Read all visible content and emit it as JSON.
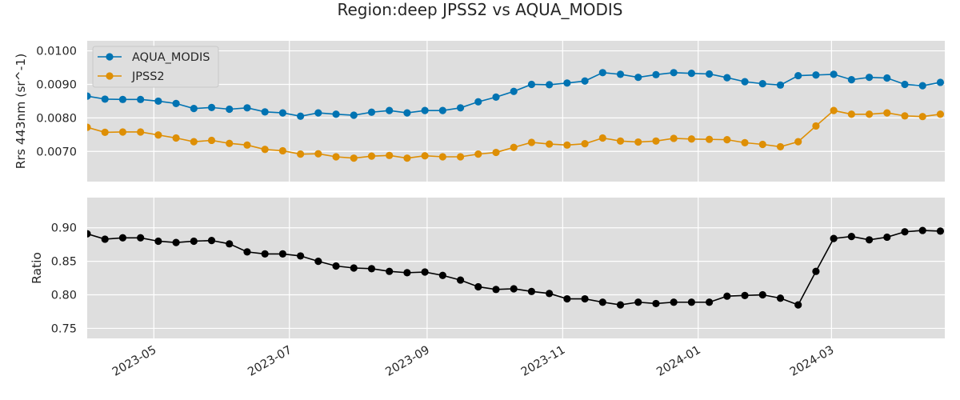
{
  "chart_data": [
    {
      "type": "line",
      "title": "Region:deep JPSS2 vs AQUA_MODIS",
      "ylabel": "Rrs 443nm (sr^-1)",
      "ylim": [
        0.0061,
        0.0103
      ],
      "yticks": [
        "0.0070",
        "0.0080",
        "0.0090",
        "0.0100"
      ],
      "legend": "upper-left",
      "grid": true,
      "x": [
        "2023-04-01",
        "2023-04-09",
        "2023-04-17",
        "2023-04-25",
        "2023-05-03",
        "2023-05-11",
        "2023-05-19",
        "2023-05-27",
        "2023-06-04",
        "2023-06-12",
        "2023-06-20",
        "2023-06-28",
        "2023-07-06",
        "2023-07-14",
        "2023-07-22",
        "2023-07-30",
        "2023-08-07",
        "2023-08-15",
        "2023-08-23",
        "2023-08-31",
        "2023-09-08",
        "2023-09-16",
        "2023-09-24",
        "2023-10-02",
        "2023-10-10",
        "2023-10-18",
        "2023-10-26",
        "2023-11-03",
        "2023-11-11",
        "2023-11-19",
        "2023-11-27",
        "2023-12-05",
        "2023-12-13",
        "2023-12-21",
        "2023-12-29",
        "2024-01-06",
        "2024-01-14",
        "2024-01-22",
        "2024-01-30",
        "2024-02-07",
        "2024-02-15",
        "2024-02-23",
        "2024-03-02",
        "2024-03-10",
        "2024-03-18",
        "2024-03-26",
        "2024-04-03",
        "2024-04-11",
        "2024-04-19"
      ],
      "series": [
        {
          "name": "AQUA_MODIS",
          "color": "#0173b2",
          "values": [
            0.00865,
            0.00856,
            0.00855,
            0.00855,
            0.0085,
            0.00843,
            0.00828,
            0.00831,
            0.00826,
            0.0083,
            0.00818,
            0.00815,
            0.00805,
            0.00815,
            0.00811,
            0.00808,
            0.00817,
            0.00822,
            0.00815,
            0.00822,
            0.00822,
            0.0083,
            0.00848,
            0.00862,
            0.00879,
            0.009,
            0.00899,
            0.00904,
            0.0091,
            0.00935,
            0.0093,
            0.00921,
            0.00929,
            0.00935,
            0.00933,
            0.00931,
            0.0092,
            0.00908,
            0.00902,
            0.00898,
            0.00926,
            0.00928,
            0.0093,
            0.00914,
            0.00921,
            0.00919,
            0.009,
            0.00896,
            0.00906
          ]
        },
        {
          "name": "JPSS2",
          "color": "#de8f05",
          "values": [
            0.00772,
            0.00757,
            0.00758,
            0.00758,
            0.00749,
            0.0074,
            0.00729,
            0.00733,
            0.00724,
            0.00719,
            0.00706,
            0.00702,
            0.00692,
            0.00693,
            0.00684,
            0.0068,
            0.00686,
            0.00688,
            0.0068,
            0.00687,
            0.00684,
            0.00684,
            0.00692,
            0.00697,
            0.00712,
            0.00727,
            0.00722,
            0.00719,
            0.00723,
            0.0074,
            0.00731,
            0.00728,
            0.00731,
            0.00739,
            0.00737,
            0.00736,
            0.00735,
            0.00726,
            0.00721,
            0.00714,
            0.00729,
            0.00776,
            0.00822,
            0.00811,
            0.00811,
            0.00815,
            0.00806,
            0.00804,
            0.00811
          ]
        }
      ]
    },
    {
      "type": "line",
      "ylabel": "Ratio",
      "ylim": [
        0.735,
        0.945
      ],
      "yticks": [
        "0.75",
        "0.80",
        "0.85",
        "0.90"
      ],
      "xticks": [
        "2023-05",
        "2023-07",
        "2023-09",
        "2023-11",
        "2024-01",
        "2024-03"
      ],
      "xlim": [
        "2023-04-01",
        "2024-04-21"
      ],
      "grid": true,
      "series": [
        {
          "color": "#000000",
          "values": [
            0.891,
            0.883,
            0.885,
            0.885,
            0.88,
            0.878,
            0.88,
            0.881,
            0.876,
            0.864,
            0.861,
            0.861,
            0.858,
            0.85,
            0.843,
            0.84,
            0.839,
            0.835,
            0.833,
            0.834,
            0.829,
            0.822,
            0.812,
            0.808,
            0.809,
            0.805,
            0.802,
            0.794,
            0.794,
            0.789,
            0.785,
            0.789,
            0.787,
            0.789,
            0.789,
            0.789,
            0.798,
            0.799,
            0.8,
            0.795,
            0.785,
            0.835,
            0.884,
            0.887,
            0.882,
            0.886,
            0.894,
            0.896,
            0.895
          ]
        }
      ]
    }
  ]
}
